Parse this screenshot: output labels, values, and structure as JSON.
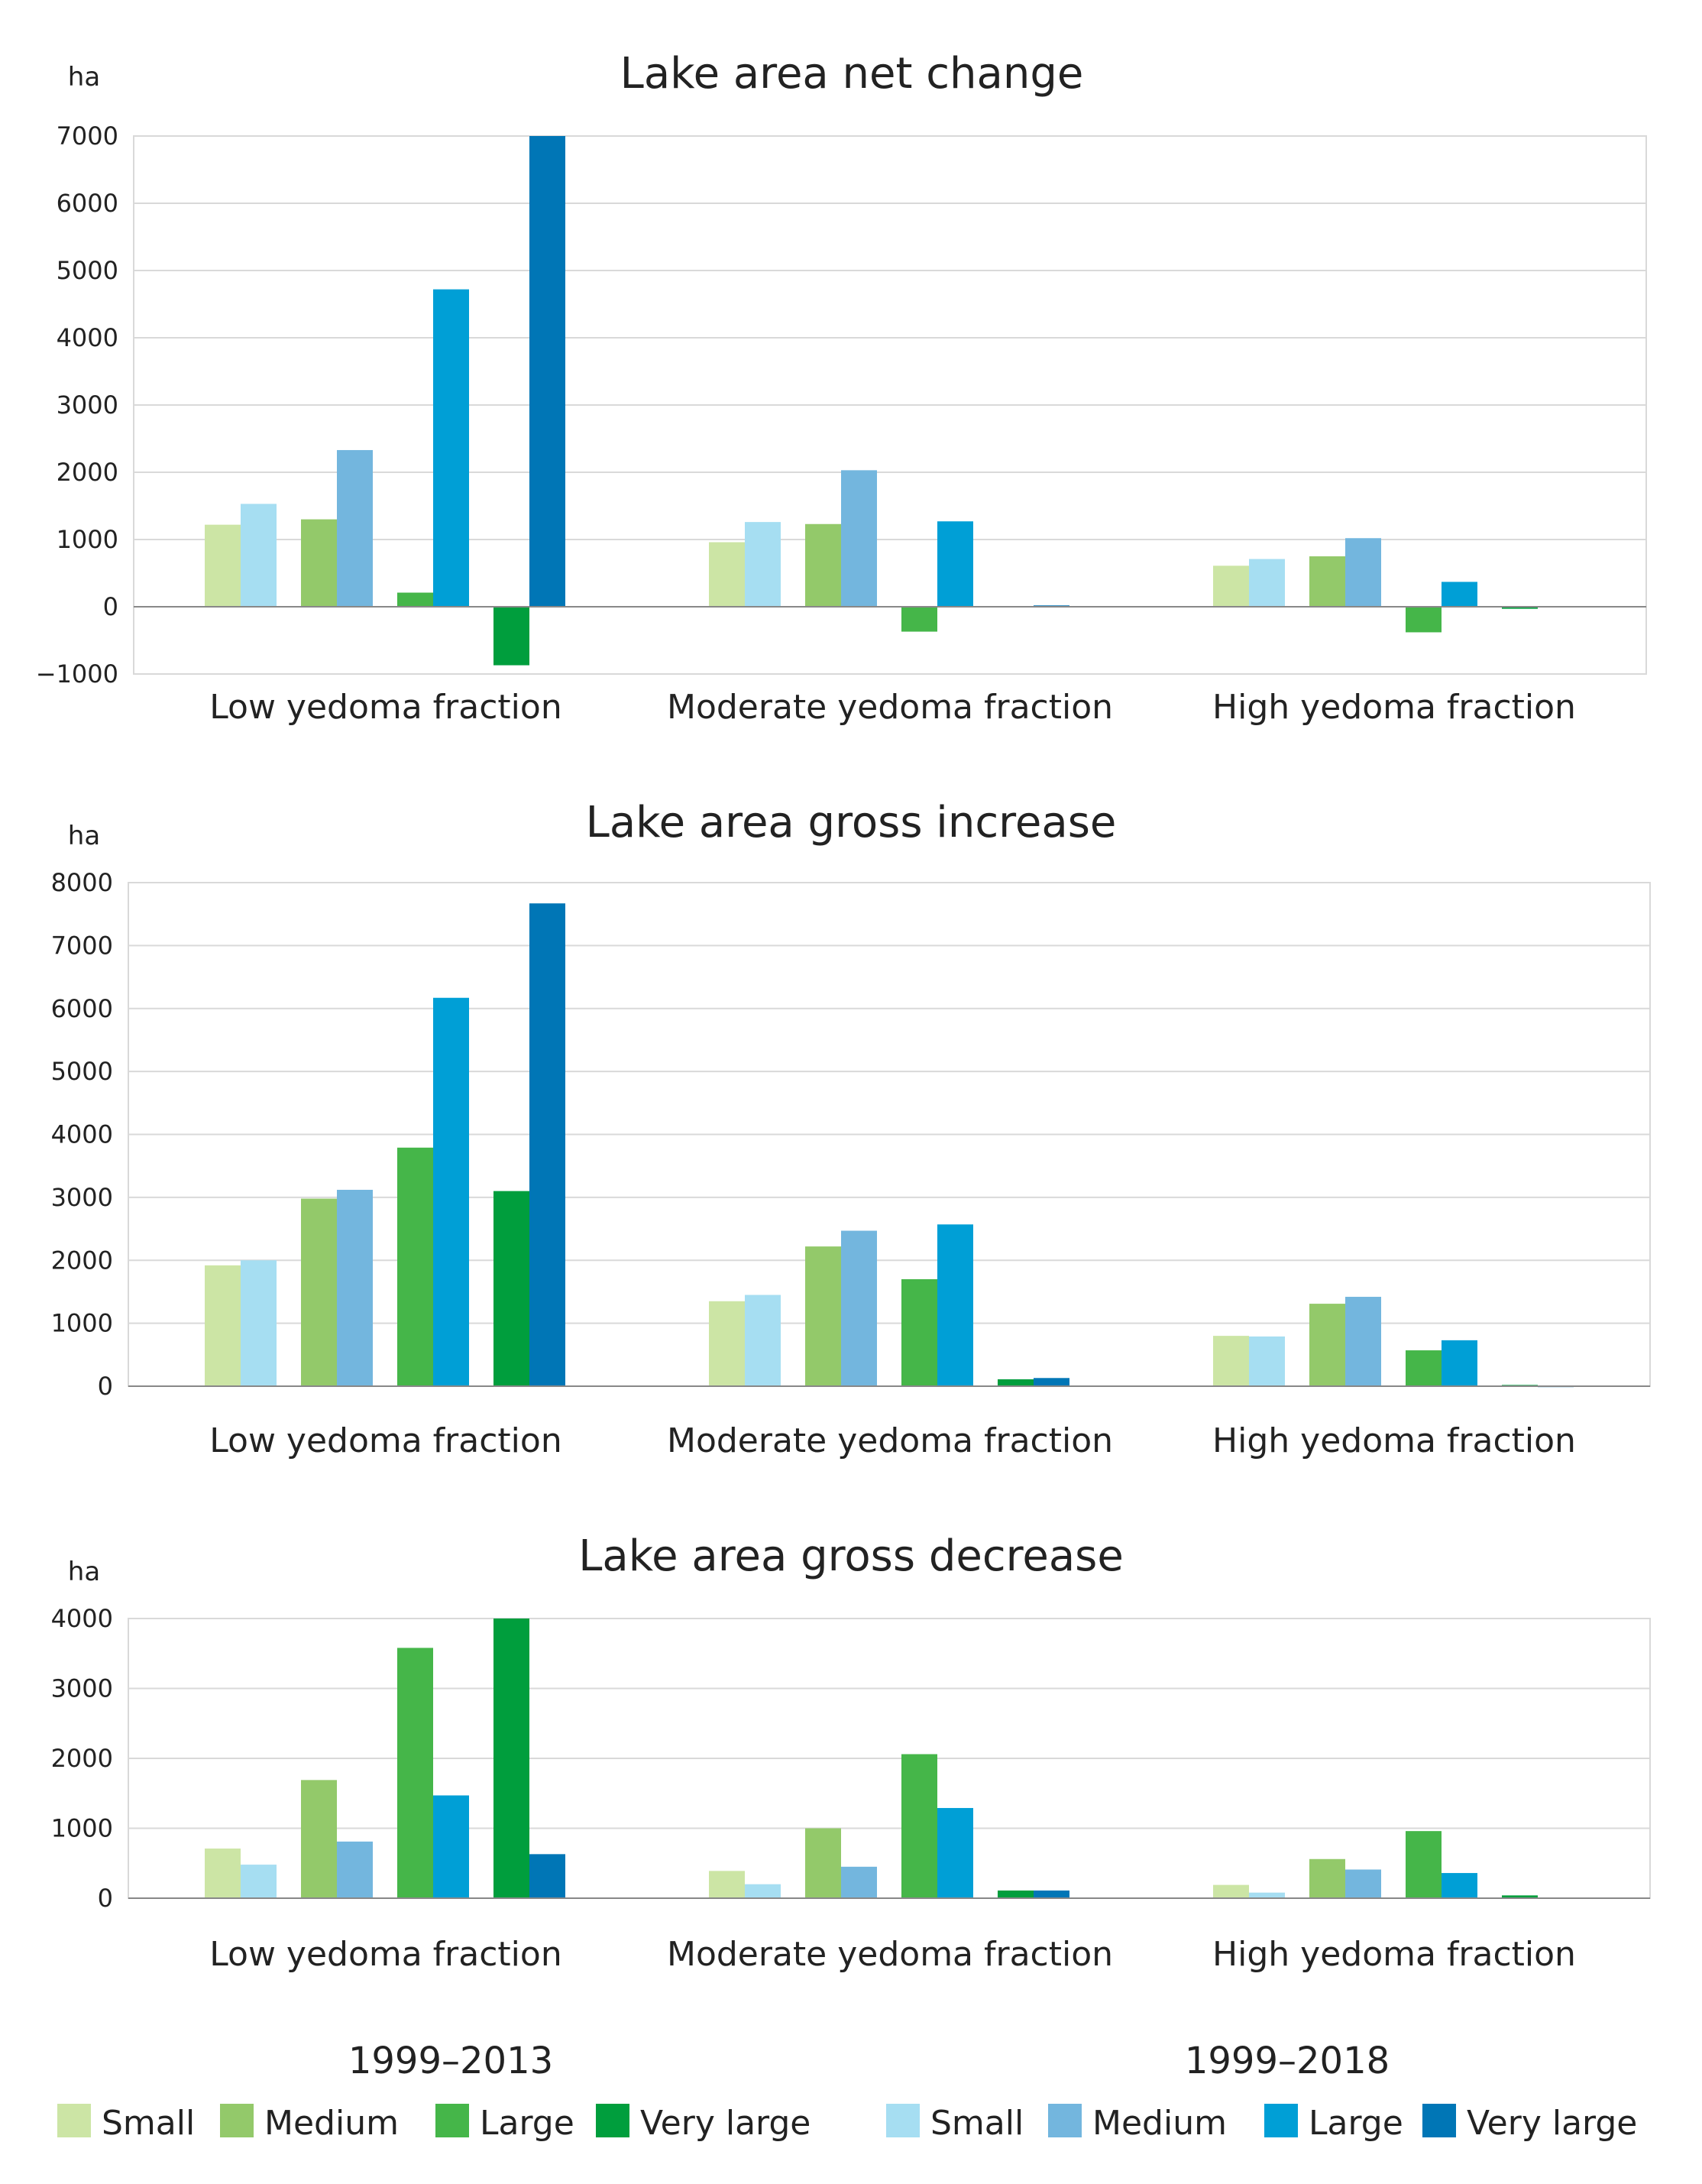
{
  "chart_data": [
    {
      "type": "bar",
      "title": "Lake area net change",
      "ylabel": "ha",
      "ylim": [
        -1000,
        7000
      ],
      "yticks": [
        -1000,
        0,
        1000,
        2000,
        3000,
        4000,
        5000,
        6000,
        7000
      ],
      "categories": [
        "Low yedoma fraction",
        "Moderate yedoma fraction",
        "High yedoma fraction"
      ],
      "series": [
        {
          "name": "Small",
          "period": "1999–2013",
          "values": [
            1220,
            960,
            610
          ]
        },
        {
          "name": "Small",
          "period": "1999–2018",
          "values": [
            1530,
            1260,
            710
          ]
        },
        {
          "name": "Medium",
          "period": "1999–2013",
          "values": [
            1300,
            1230,
            750
          ]
        },
        {
          "name": "Medium",
          "period": "1999–2018",
          "values": [
            2330,
            2030,
            1020
          ]
        },
        {
          "name": "Large",
          "period": "1999–2013",
          "values": [
            210,
            -370,
            -380
          ]
        },
        {
          "name": "Large",
          "period": "1999–2018",
          "values": [
            4720,
            1270,
            370
          ]
        },
        {
          "name": "Very large",
          "period": "1999–2013",
          "values": [
            -870,
            0,
            -30
          ]
        },
        {
          "name": "Very large",
          "period": "1999–2018",
          "values": [
            7000,
            20,
            0
          ]
        }
      ]
    },
    {
      "type": "bar",
      "title": "Lake area gross increase",
      "ylabel": "ha",
      "ylim": [
        0,
        8000
      ],
      "yticks": [
        0,
        1000,
        2000,
        3000,
        4000,
        5000,
        6000,
        7000,
        8000
      ],
      "categories": [
        "Low yedoma fraction",
        "Moderate yedoma fraction",
        "High yedoma fraction"
      ],
      "series": [
        {
          "name": "Small",
          "period": "1999–2013",
          "values": [
            1920,
            1350,
            800
          ]
        },
        {
          "name": "Small",
          "period": "1999–2018",
          "values": [
            2000,
            1450,
            790
          ]
        },
        {
          "name": "Medium",
          "period": "1999–2013",
          "values": [
            2980,
            2220,
            1310
          ]
        },
        {
          "name": "Medium",
          "period": "1999–2018",
          "values": [
            3120,
            2470,
            1420
          ]
        },
        {
          "name": "Large",
          "period": "1999–2013",
          "values": [
            3790,
            1700,
            570
          ]
        },
        {
          "name": "Large",
          "period": "1999–2018",
          "values": [
            6170,
            2570,
            730
          ]
        },
        {
          "name": "Very large",
          "period": "1999–2013",
          "values": [
            3100,
            110,
            20
          ]
        },
        {
          "name": "Very large",
          "period": "1999–2018",
          "values": [
            7670,
            130,
            10
          ]
        }
      ]
    },
    {
      "type": "bar",
      "title": "Lake area gross decrease",
      "ylabel": "ha",
      "ylim": [
        0,
        4000
      ],
      "yticks": [
        0,
        1000,
        2000,
        3000,
        4000
      ],
      "categories": [
        "Low yedoma fraction",
        "Moderate yedoma fraction",
        "High yedoma fraction"
      ],
      "series": [
        {
          "name": "Small",
          "period": "1999–2013",
          "values": [
            710,
            390,
            190
          ]
        },
        {
          "name": "Small",
          "period": "1999–2018",
          "values": [
            480,
            200,
            80
          ]
        },
        {
          "name": "Medium",
          "period": "1999–2013",
          "values": [
            1690,
            1000,
            560
          ]
        },
        {
          "name": "Medium",
          "period": "1999–2018",
          "values": [
            810,
            450,
            410
          ]
        },
        {
          "name": "Large",
          "period": "1999–2013",
          "values": [
            3580,
            2060,
            960
          ]
        },
        {
          "name": "Large",
          "period": "1999–2018",
          "values": [
            1470,
            1290,
            360
          ]
        },
        {
          "name": "Very large",
          "period": "1999–2013",
          "values": [
            4000,
            110,
            40
          ]
        },
        {
          "name": "Very large",
          "period": "1999–2018",
          "values": [
            630,
            110,
            0
          ]
        }
      ]
    }
  ],
  "periods": {
    "first": "1999–2013",
    "second": "1999–2018"
  },
  "legend": {
    "period1": [
      {
        "label": "Small",
        "color": "#cce5a5"
      },
      {
        "label": "Medium",
        "color": "#93c96a"
      },
      {
        "label": "Large",
        "color": "#45b649"
      },
      {
        "label": "Very large",
        "color": "#009e3d"
      }
    ],
    "period2": [
      {
        "label": "Small",
        "color": "#a6def2"
      },
      {
        "label": "Medium",
        "color": "#73b6de"
      },
      {
        "label": "Large",
        "color": "#009fd6"
      },
      {
        "label": "Very large",
        "color": "#0076b6"
      }
    ]
  }
}
